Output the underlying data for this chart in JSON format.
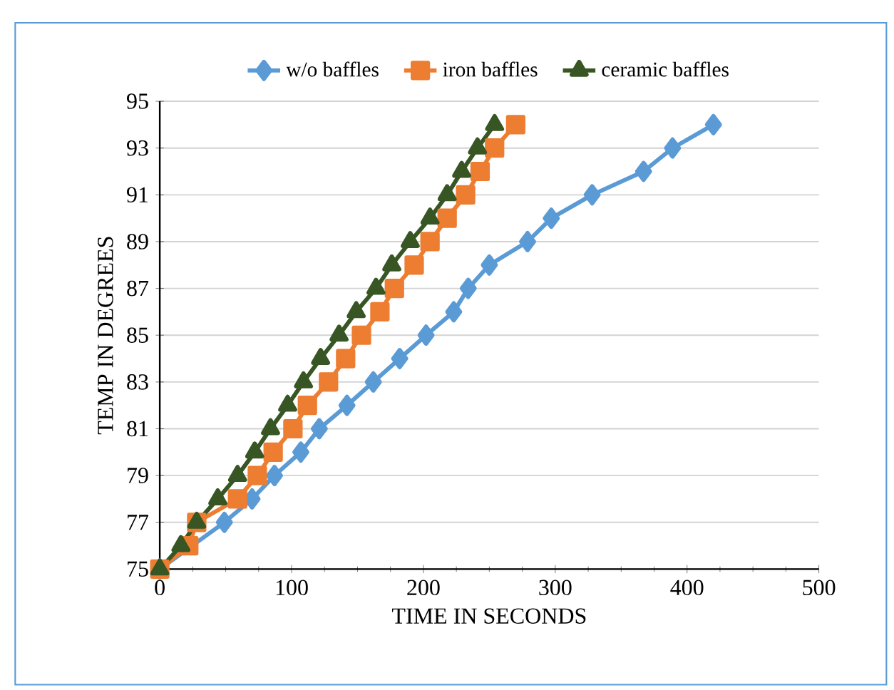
{
  "chart_data": {
    "type": "line",
    "xlabel": "TIME IN SECONDS",
    "ylabel": "TEMP IN DEGREES",
    "xlim": [
      0,
      500
    ],
    "xticks": [
      0,
      100,
      200,
      300,
      400,
      500
    ],
    "ylim": [
      75,
      95
    ],
    "yticks": [
      75,
      77,
      79,
      81,
      83,
      85,
      87,
      89,
      91,
      93,
      95
    ],
    "grid": "y",
    "legend": "top",
    "line_style": "solid",
    "series": [
      {
        "name": "w/o baffles",
        "color": "#5b9bd5",
        "marker": "diamond",
        "x": [
          0,
          49,
          70,
          87,
          107,
          121,
          142,
          162,
          182,
          202,
          223,
          234,
          250,
          279,
          297,
          328,
          367,
          389,
          420
        ],
        "values": [
          75,
          77,
          78,
          79,
          80,
          81,
          82,
          83,
          84,
          85,
          86,
          87,
          88,
          89,
          90,
          91,
          92,
          93,
          94
        ]
      },
      {
        "name": "iron baffles",
        "color": "#ed7d31",
        "marker": "square",
        "x": [
          0,
          22,
          28,
          59,
          74,
          86,
          101,
          112,
          128,
          141,
          153,
          167,
          178,
          193,
          205,
          218,
          232,
          243,
          254,
          270
        ],
        "values": [
          75,
          76,
          77,
          78,
          79,
          80,
          81,
          82,
          83,
          84,
          85,
          86,
          87,
          88,
          89,
          90,
          91,
          92,
          93,
          94
        ]
      },
      {
        "name": "ceramic baffles",
        "color": "#375623",
        "marker": "triangle",
        "x": [
          0,
          16,
          28,
          44,
          59,
          72,
          84,
          97,
          109,
          122,
          136,
          149,
          164,
          176,
          190,
          205,
          218,
          229,
          241,
          254
        ],
        "values": [
          75,
          76,
          77,
          78,
          79,
          80,
          81,
          82,
          83,
          84,
          85,
          86,
          87,
          88,
          89,
          90,
          91,
          92,
          93,
          94
        ]
      }
    ]
  }
}
